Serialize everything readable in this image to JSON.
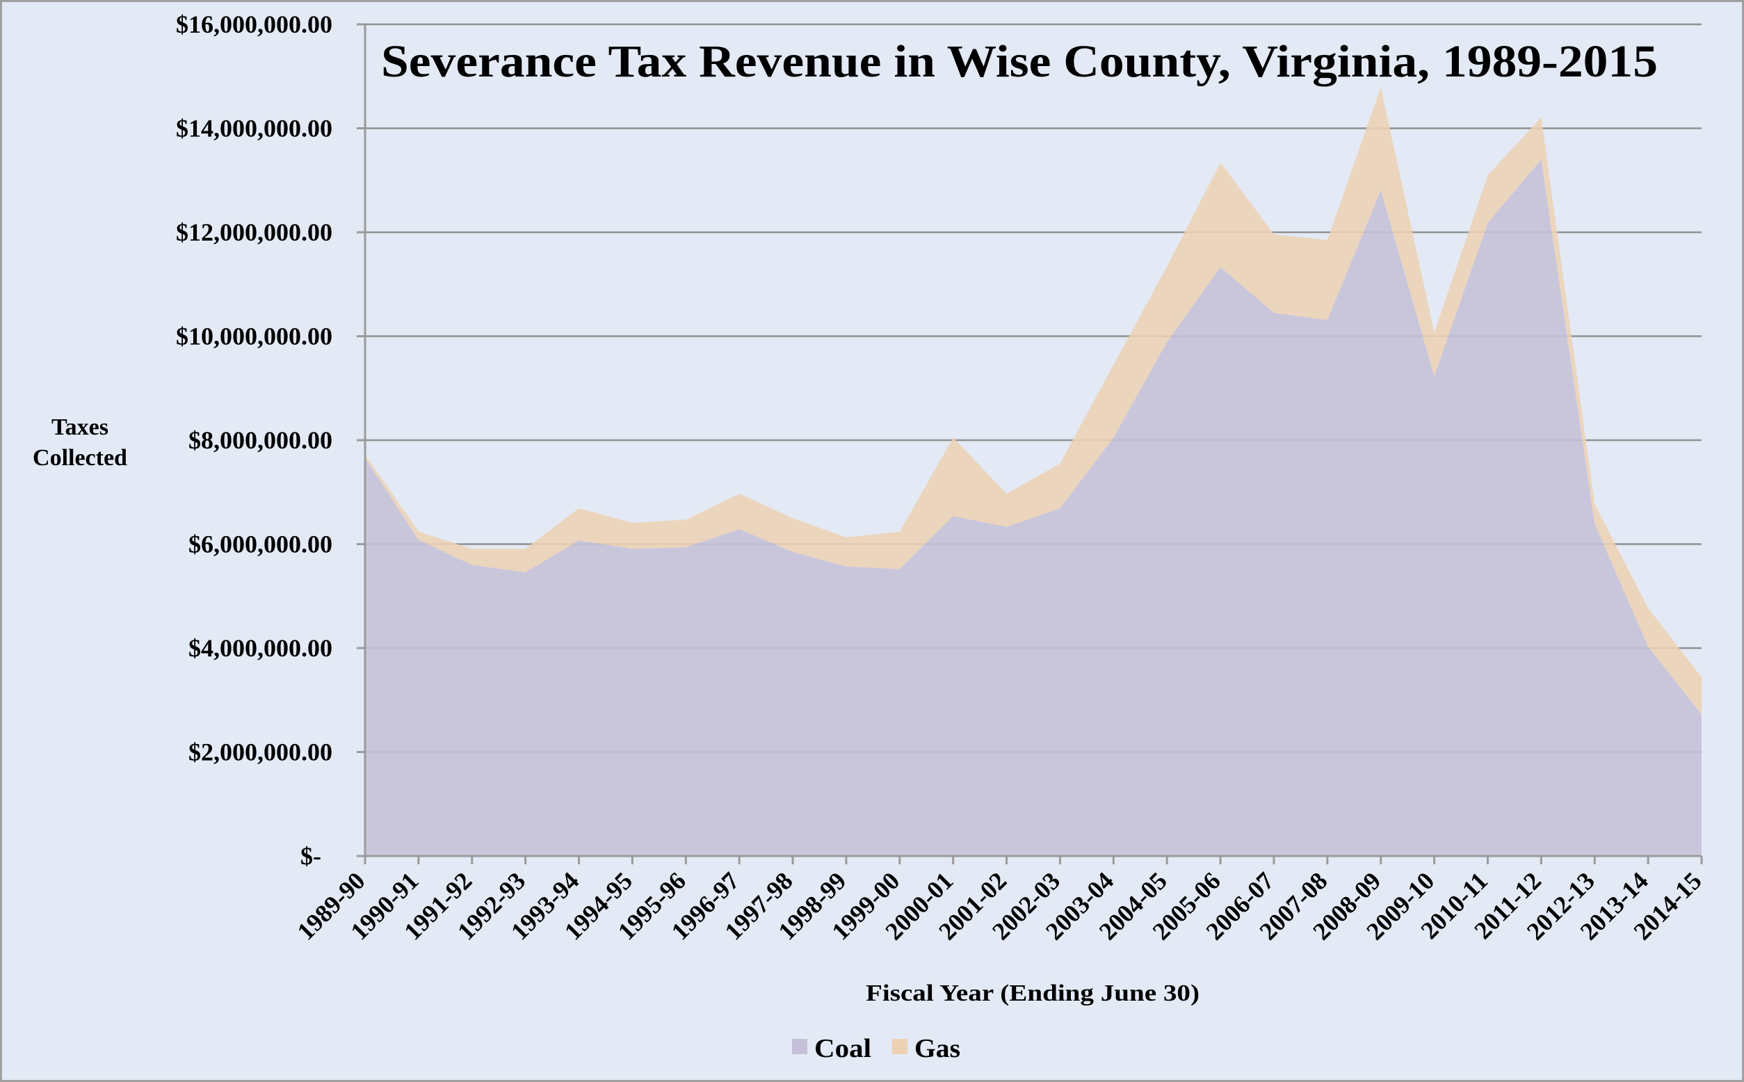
{
  "chart_data": {
    "type": "area",
    "stacked": true,
    "title": "Severance Tax Revenue in Wise County, Virginia, 1989-2015",
    "xlabel": "Fiscal Year (Ending June 30)",
    "ylabel_lines": [
      "Taxes",
      "Collected"
    ],
    "ylim": [
      0,
      16000000
    ],
    "ytick_step": 2000000,
    "ytick_labels": [
      "$-",
      "$2,000,000.00",
      "$4,000,000.00",
      "$6,000,000.00",
      "$8,000,000.00",
      "$10,000,000.00",
      "$12,000,000.00",
      "$14,000,000.00",
      "$16,000,000.00"
    ],
    "grid": true,
    "legend_position": "bottom",
    "categories": [
      "1989-90",
      "1990-91",
      "1991-92",
      "1992-93",
      "1993-94",
      "1994-95",
      "1995-96",
      "1996-97",
      "1997-98",
      "1998-99",
      "1999-00",
      "2000-01",
      "2001-02",
      "2002-03",
      "2003-04",
      "2004-05",
      "2005-06",
      "2006-07",
      "2007-08",
      "2008-09",
      "2009-10",
      "2010-11",
      "2011-12",
      "2012-13",
      "2013-14",
      "2014-15"
    ],
    "series": [
      {
        "name": "Coal",
        "color": "#c5c0d8",
        "values": [
          7660000,
          6080000,
          5600000,
          5460000,
          6070000,
          5910000,
          5940000,
          6290000,
          5850000,
          5570000,
          5520000,
          6540000,
          6330000,
          6690000,
          8050000,
          9890000,
          11330000,
          10450000,
          10310000,
          12810000,
          9230000,
          12180000,
          13400000,
          6390000,
          4030000,
          2720000
        ]
      },
      {
        "name": "Gas",
        "color": "#edd1b5",
        "values": [
          60000,
          160000,
          310000,
          450000,
          620000,
          500000,
          530000,
          680000,
          650000,
          560000,
          720000,
          1510000,
          640000,
          860000,
          1400000,
          1450000,
          2010000,
          1510000,
          1540000,
          1980000,
          840000,
          920000,
          810000,
          380000,
          740000,
          720000
        ]
      }
    ]
  },
  "colors": {
    "background": "#e3eaf5",
    "gridline": "#909090",
    "frame_border": "#a0a0a0"
  }
}
